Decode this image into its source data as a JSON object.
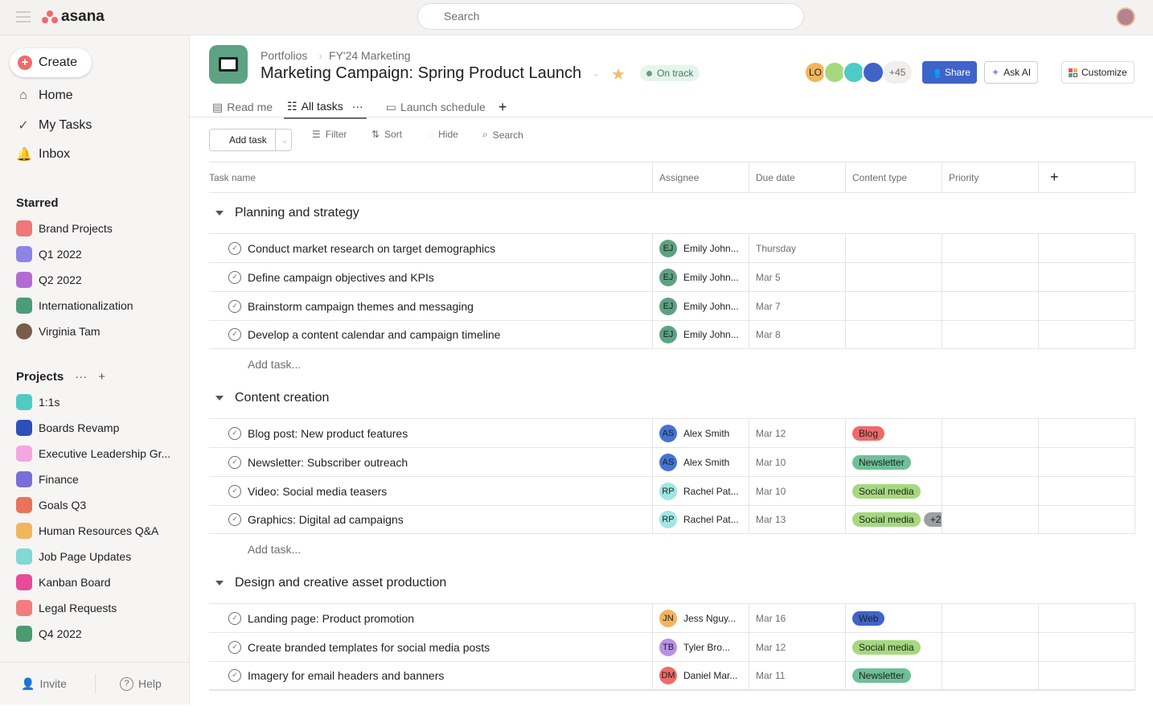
{
  "app": {
    "brand": "asana",
    "search_placeholder": "Search"
  },
  "sidebar": {
    "create_label": "Create",
    "nav": [
      {
        "label": "Home",
        "icon": "home-icon"
      },
      {
        "label": "My Tasks",
        "icon": "check-circle-icon"
      },
      {
        "label": "Inbox",
        "icon": "bell-icon"
      }
    ],
    "starred_title": "Starred",
    "starred": [
      {
        "label": "Brand Projects",
        "color": "#f07878"
      },
      {
        "label": "Q1 2022",
        "color": "#8d84e8"
      },
      {
        "label": "Q2 2022",
        "color": "#b36bd4"
      },
      {
        "label": "Internationalization",
        "color": "#4d9b7a"
      },
      {
        "label": "Virginia Tam",
        "color": "#7a5c4a"
      }
    ],
    "projects_title": "Projects",
    "projects": [
      {
        "label": "1:1s",
        "color": "#4ecbc4"
      },
      {
        "label": "Boards Revamp",
        "color": "#2d4fb8"
      },
      {
        "label": "Executive Leadership Gr...",
        "color": "#f4a6e0"
      },
      {
        "label": "Finance",
        "color": "#7a6fd8"
      },
      {
        "label": "Goals Q3",
        "color": "#e9735a"
      },
      {
        "label": "Human Resources Q&A",
        "color": "#f1b55c"
      },
      {
        "label": "Job Page Updates",
        "color": "#7fd9d4"
      },
      {
        "label": "Kanban Board",
        "color": "#e8499a"
      },
      {
        "label": "Legal Requests",
        "color": "#f27d7d"
      },
      {
        "label": "Q4 2022",
        "color": "#4b9a71"
      }
    ],
    "invite_label": "Invite",
    "help_label": "Help"
  },
  "project": {
    "breadcrumb": [
      "Portfolios",
      "FY'24 Marketing"
    ],
    "title": "Marketing Campaign: Spring Product Launch",
    "status": "On track",
    "members_initials": "LO",
    "members_more": "+45",
    "share_label": "Share",
    "ask_ai_label": "Ask AI",
    "customize_label": "Customize",
    "tabs": [
      {
        "label": "Read me"
      },
      {
        "label": "All tasks",
        "active": true
      },
      {
        "label": "Launch schedule"
      }
    ]
  },
  "toolbar": {
    "add_task": "Add task",
    "filter": "Filter",
    "sort": "Sort",
    "hide": "Hide",
    "search": "Search"
  },
  "table": {
    "columns": [
      "Task name",
      "Assignee",
      "Due date",
      "Content type",
      "Priority"
    ],
    "add_task_label": "Add task...",
    "sections": [
      {
        "name": "Planning and strategy",
        "add": true,
        "tasks": [
          {
            "name": "Conduct market research on target demographics",
            "initials": "EJ",
            "assignee": "Emily John...",
            "av": "#5da283",
            "due": "Thursday",
            "tags": []
          },
          {
            "name": "Define campaign objectives and KPIs",
            "initials": "EJ",
            "assignee": "Emily John...",
            "av": "#5da283",
            "due": "Mar 5",
            "tags": []
          },
          {
            "name": "Brainstorm campaign themes and messaging",
            "initials": "EJ",
            "assignee": "Emily John...",
            "av": "#5da283",
            "due": "Mar 7",
            "tags": []
          },
          {
            "name": "Develop a content calendar and campaign timeline",
            "initials": "EJ",
            "assignee": "Emily John...",
            "av": "#5da283",
            "due": "Mar 8",
            "tags": []
          }
        ]
      },
      {
        "name": "Content creation",
        "add": true,
        "tasks": [
          {
            "name": "Blog post: New product features",
            "initials": "AS",
            "assignee": "Alex Smith",
            "av": "#4573d2",
            "due": "Mar 12",
            "tags": [
              {
                "label": "Blog",
                "color": "#f06a6a"
              }
            ]
          },
          {
            "name": "Newsletter: Subscriber outreach",
            "initials": "AS",
            "assignee": "Alex Smith",
            "av": "#4573d2",
            "due": "Mar 10",
            "tags": [
              {
                "label": "Newsletter",
                "color": "#6fbf97"
              }
            ]
          },
          {
            "name": "Video: Social media teasers",
            "initials": "RP",
            "assignee": "Rachel Pat...",
            "av": "#9ee7e3",
            "due": "Mar 10",
            "tags": [
              {
                "label": "Social media",
                "color": "#a5d97e"
              }
            ]
          },
          {
            "name": "Graphics: Digital ad campaigns",
            "initials": "RP",
            "assignee": "Rachel Pat...",
            "av": "#9ee7e3",
            "due": "Mar 13",
            "tags": [
              {
                "label": "Social media",
                "color": "#a5d97e"
              },
              {
                "label": "+2",
                "color": "#9ca0a4"
              }
            ]
          }
        ]
      },
      {
        "name": "Design and creative asset production",
        "add": false,
        "tasks": [
          {
            "name": "Landing page: Product promotion",
            "initials": "JN",
            "assignee": "Jess Nguy...",
            "av": "#f1b55c",
            "due": "Mar 16",
            "tags": [
              {
                "label": "Web",
                "color": "#3f63c9"
              }
            ]
          },
          {
            "name": "Create branded templates for social media posts",
            "initials": "TB",
            "assignee": "Tyler Bro...",
            "av": "#b991e6",
            "due": "Mar 12",
            "tags": [
              {
                "label": "Social media",
                "color": "#a5d97e"
              }
            ]
          },
          {
            "name": "Imagery for email headers and banners",
            "initials": "DM",
            "assignee": "Daniel Mar...",
            "av": "#f06a6a",
            "due": "Mar 11",
            "tags": [
              {
                "label": "Newsletter",
                "color": "#6fbf97"
              }
            ]
          }
        ]
      }
    ]
  }
}
